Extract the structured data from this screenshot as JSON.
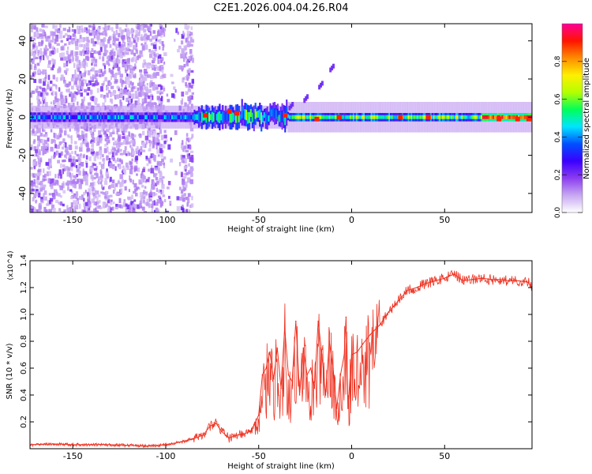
{
  "chart_data": [
    {
      "type": "heatmap",
      "title": "C2E1.2026.004.04.26.R04",
      "xlabel": "Height of straight line (km)",
      "ylabel": "Frequency (Hz)",
      "xlim": [
        -173,
        97
      ],
      "ylim": [
        -50,
        49
      ],
      "xticks": [
        -150,
        -100,
        -50,
        0,
        50
      ],
      "yticks": [
        -40,
        -20,
        0,
        20,
        40
      ],
      "colorbar": {
        "label": "Normalized spectral amplitude",
        "range": [
          0,
          1
        ],
        "ticks": [
          "0.0",
          "0.2",
          "0.4",
          "0.6",
          "0.8"
        ],
        "tick_values": [
          0.0,
          0.2,
          0.4,
          0.6,
          0.8
        ],
        "colors": [
          "#ffffff",
          "#c7a8f2",
          "#8b3df0",
          "#3a00ff",
          "#0050ff",
          "#00e5ff",
          "#00ff5a",
          "#b4ff00",
          "#fff000",
          "#ff8c00",
          "#ff1400",
          "#ff0096"
        ]
      },
      "features": [
        {
          "name": "noise region",
          "x_range": [
            -173,
            -86
          ],
          "note": "broadband scattered low-amplitude energy"
        },
        {
          "name": "central band",
          "x_range": [
            -173,
            97
          ],
          "frequency_hz": 0
        },
        {
          "name": "diagonal trace",
          "points": [
            [
              -34,
              5
            ],
            [
              -26,
              9
            ],
            [
              -18,
              16
            ],
            [
              -12,
              25
            ]
          ]
        }
      ]
    },
    {
      "type": "line",
      "xlabel": "Height of straight line (km)",
      "ylabel": "SNR (10 * v/v)",
      "y_multiplier": "(x10^4)",
      "xlim": [
        -173,
        97
      ],
      "ylim": [
        0,
        1.4
      ],
      "xticks": [
        -150,
        -100,
        -50,
        0,
        50
      ],
      "yticks": [
        "0.2",
        "0.4",
        "0.6",
        "0.8",
        "1.0",
        "1.2",
        "1.4"
      ],
      "ytick_values": [
        0.2,
        0.4,
        0.6,
        0.8,
        1.0,
        1.2,
        1.4
      ],
      "series": [
        {
          "name": "SNR",
          "color": "#ee3322",
          "x": [
            -173,
            -160,
            -150,
            -140,
            -130,
            -120,
            -110,
            -100,
            -92,
            -86,
            -80,
            -76,
            -73,
            -70,
            -66,
            -62,
            -58,
            -54,
            -50,
            -48,
            -46,
            -44,
            -42,
            -40,
            -38,
            -36,
            -34,
            -32,
            -30,
            -28,
            -26,
            -24,
            -22,
            -20,
            -18,
            -16,
            -14,
            -12,
            -10,
            -8,
            -6,
            -4,
            -3,
            -2,
            0,
            3,
            6,
            10,
            15,
            20,
            25,
            30,
            35,
            40,
            45,
            50,
            55,
            60,
            65,
            70,
            75,
            80,
            85,
            90,
            95,
            97
          ],
          "y": [
            0.03,
            0.035,
            0.03,
            0.03,
            0.03,
            0.025,
            0.02,
            0.03,
            0.05,
            0.07,
            0.1,
            0.17,
            0.19,
            0.13,
            0.08,
            0.1,
            0.11,
            0.13,
            0.25,
            0.55,
            0.6,
            0.72,
            0.52,
            0.75,
            0.45,
            0.9,
            0.55,
            0.5,
            0.95,
            0.4,
            0.75,
            0.55,
            0.6,
            0.45,
            0.95,
            0.7,
            0.4,
            0.8,
            0.6,
            0.3,
            0.55,
            0.7,
            0.98,
            0.3,
            0.7,
            0.72,
            0.78,
            0.85,
            0.92,
            1.02,
            1.1,
            1.18,
            1.2,
            1.23,
            1.25,
            1.27,
            1.3,
            1.25,
            1.26,
            1.27,
            1.26,
            1.26,
            1.25,
            1.25,
            1.24,
            1.2
          ]
        }
      ]
    }
  ]
}
